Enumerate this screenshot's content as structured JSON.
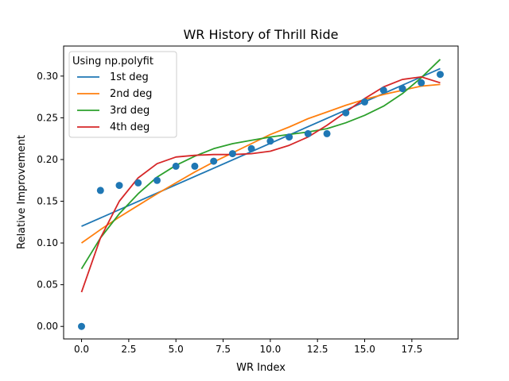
{
  "chart_data": {
    "type": "scatter",
    "title": "WR History of Thrill Ride",
    "xlabel": "WR Index",
    "ylabel": "Relative Improvement",
    "xlim": [
      -0.95,
      19.95
    ],
    "ylim": [
      -0.015,
      0.336
    ],
    "xticks": [
      0,
      2.5,
      5,
      7.5,
      10,
      12.5,
      15,
      17.5
    ],
    "xtick_labels": [
      "0.0",
      "2.5",
      "5.0",
      "7.5",
      "10.0",
      "12.5",
      "15.0",
      "17.5"
    ],
    "yticks": [
      0,
      0.05,
      0.1,
      0.15,
      0.2,
      0.25,
      0.3
    ],
    "ytick_labels": [
      "0.00",
      "0.05",
      "0.10",
      "0.15",
      "0.20",
      "0.25",
      "0.30"
    ],
    "grid": false,
    "legend": {
      "title": "Using np.polyfit",
      "placement": "top-left",
      "entries": [
        "1st deg",
        "2nd deg",
        "3rd deg",
        "4th deg"
      ]
    },
    "points": {
      "color": "#1f77b4",
      "x": [
        0,
        1,
        2,
        3,
        4,
        5,
        6,
        7,
        8,
        9,
        10,
        11,
        12,
        13,
        14,
        15,
        16,
        17,
        18,
        19
      ],
      "y": [
        0.0,
        0.163,
        0.169,
        0.172,
        0.175,
        0.192,
        0.192,
        0.198,
        0.207,
        0.213,
        0.222,
        0.227,
        0.231,
        0.231,
        0.256,
        0.269,
        0.283,
        0.285,
        0.292,
        0.302
      ]
    },
    "series": [
      {
        "name": "1st deg",
        "color": "#1f77b4",
        "x": [
          0,
          19
        ],
        "y": [
          0.12,
          0.309
        ]
      },
      {
        "name": "2nd deg",
        "color": "#ff7f0e",
        "x": [
          0,
          1,
          2,
          3,
          4,
          5,
          6,
          7,
          8,
          9,
          10,
          11,
          12,
          13,
          14,
          15,
          16,
          17,
          18,
          19
        ],
        "y": [
          0.1,
          0.116,
          0.131,
          0.145,
          0.159,
          0.172,
          0.185,
          0.197,
          0.208,
          0.219,
          0.23,
          0.239,
          0.249,
          0.257,
          0.265,
          0.272,
          0.278,
          0.283,
          0.288,
          0.29
        ]
      },
      {
        "name": "3rd deg",
        "color": "#2ca02c",
        "x": [
          0,
          1,
          2,
          3,
          4,
          5,
          6,
          7,
          8,
          9,
          10,
          11,
          12,
          13,
          14,
          15,
          16,
          17,
          18,
          19
        ],
        "y": [
          0.069,
          0.106,
          0.135,
          0.159,
          0.179,
          0.193,
          0.204,
          0.213,
          0.219,
          0.223,
          0.227,
          0.23,
          0.233,
          0.237,
          0.244,
          0.253,
          0.264,
          0.279,
          0.298,
          0.32
        ]
      },
      {
        "name": "4th deg",
        "color": "#d62728",
        "x": [
          0,
          1,
          2,
          3,
          4,
          5,
          6,
          7,
          8,
          9,
          10,
          11,
          12,
          13,
          14,
          15,
          16,
          17,
          18,
          19
        ],
        "y": [
          0.041,
          0.106,
          0.15,
          0.178,
          0.195,
          0.203,
          0.205,
          0.206,
          0.206,
          0.207,
          0.21,
          0.217,
          0.227,
          0.241,
          0.257,
          0.273,
          0.287,
          0.296,
          0.299,
          0.292
        ]
      }
    ]
  }
}
